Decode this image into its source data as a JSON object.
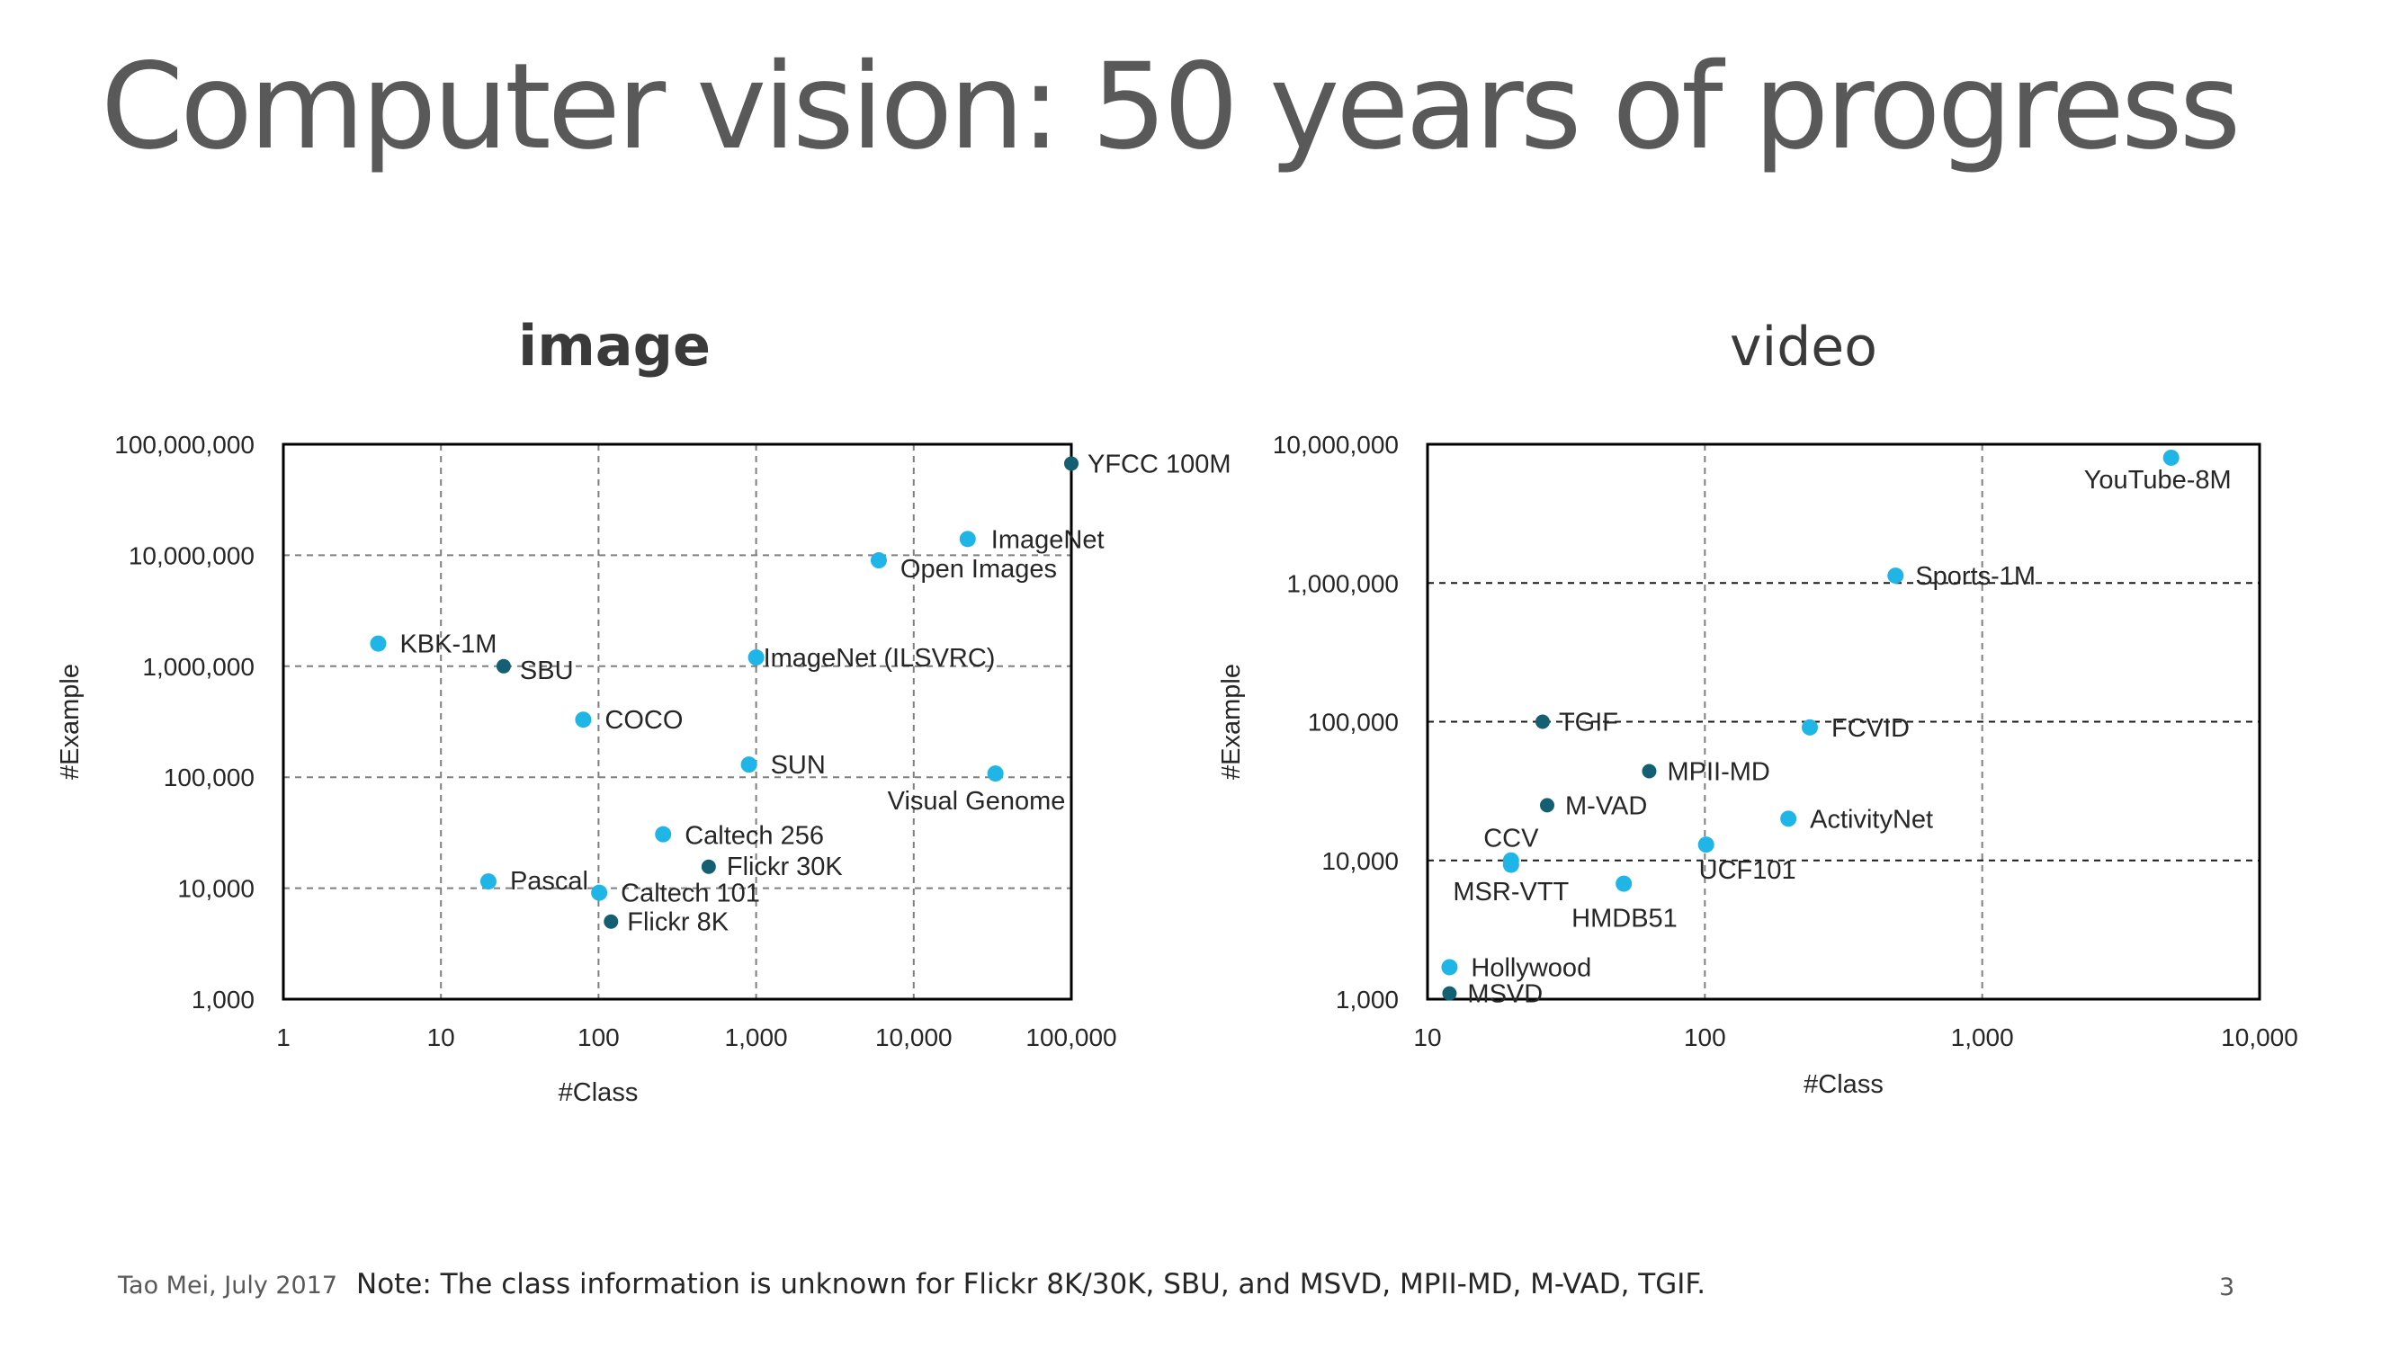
{
  "slide": {
    "title": "Computer vision: 50 years of progress",
    "author_date": "Tao Mei, July 2017",
    "note": "Note: The class information is unknown for Flickr 8K/30K, SBU, and MSVD, MPII-MD, M-VAD, TGIF.",
    "page_number": "3"
  },
  "colors": {
    "point_light": "#1fb5e6",
    "point_dark": "#155f73",
    "grid": "#7f7f7f",
    "text": "#262626"
  },
  "chart_data": [
    {
      "type": "scatter",
      "title": "image",
      "xlabel": "#Class",
      "ylabel": "#Example",
      "xscale": "log",
      "yscale": "log",
      "xlim": [
        1,
        100000
      ],
      "ylim": [
        1000,
        100000000
      ],
      "x_ticks": [
        1,
        10,
        100,
        1000,
        10000,
        100000
      ],
      "x_tick_labels": [
        "1",
        "10",
        "100",
        "1,000",
        "10,000",
        "100,000"
      ],
      "y_ticks": [
        1000,
        10000,
        100000,
        1000000,
        10000000,
        100000000
      ],
      "y_tick_labels": [
        "1,000",
        "10,000",
        "100,000",
        "1,000,000",
        "10,000,000",
        "100,000,000"
      ],
      "grid": true,
      "points": [
        {
          "label": "YFCC 100M",
          "x": 100000,
          "y": 67000000,
          "shade": "dark"
        },
        {
          "label": "ImageNet",
          "x": 22000,
          "y": 14000000,
          "shade": "light"
        },
        {
          "label": "Open Images",
          "x": 6000,
          "y": 9000000,
          "shade": "light"
        },
        {
          "label": "KBK-1M",
          "x": 4,
          "y": 1600000,
          "shade": "light"
        },
        {
          "label": "SBU",
          "x": 25,
          "y": 1000000,
          "shade": "dark"
        },
        {
          "label": "ImageNet (ILSVRC)",
          "x": 1000,
          "y": 1200000,
          "shade": "light"
        },
        {
          "label": "COCO",
          "x": 80,
          "y": 330000,
          "shade": "light"
        },
        {
          "label": "SUN",
          "x": 900,
          "y": 130000,
          "shade": "light"
        },
        {
          "label": "Visual Genome",
          "x": 33000,
          "y": 108000,
          "shade": "light"
        },
        {
          "label": "Caltech 256",
          "x": 257,
          "y": 30600,
          "shade": "light"
        },
        {
          "label": "Flickr 30K",
          "x": 500,
          "y": 15600,
          "shade": "dark"
        },
        {
          "label": "Pascal",
          "x": 20,
          "y": 11500,
          "shade": "light"
        },
        {
          "label": "Caltech 101",
          "x": 101,
          "y": 9100,
          "shade": "light"
        },
        {
          "label": "Flickr 8K",
          "x": 120,
          "y": 5000,
          "shade": "dark"
        }
      ]
    },
    {
      "type": "scatter",
      "title": "video",
      "xlabel": "#Class",
      "ylabel": "#Example",
      "xscale": "log",
      "yscale": "log",
      "xlim": [
        10,
        10000
      ],
      "ylim": [
        1000,
        10000000
      ],
      "x_ticks": [
        10,
        100,
        1000,
        10000
      ],
      "x_tick_labels": [
        "10",
        "100",
        "1,000",
        "10,000"
      ],
      "y_ticks": [
        1000,
        10000,
        100000,
        1000000,
        10000000
      ],
      "y_tick_labels": [
        "1,000",
        "10,000",
        "100,000",
        "1,000,000",
        "10,000,000"
      ],
      "grid": true,
      "points": [
        {
          "label": "YouTube-8M",
          "x": 4800,
          "y": 8000000,
          "shade": "light"
        },
        {
          "label": "Sports-1M",
          "x": 487,
          "y": 1130000,
          "shade": "light"
        },
        {
          "label": "TGIF",
          "x": 26,
          "y": 100000,
          "shade": "dark"
        },
        {
          "label": "FCVID",
          "x": 239,
          "y": 91000,
          "shade": "light"
        },
        {
          "label": "MPII-MD",
          "x": 63,
          "y": 44000,
          "shade": "dark"
        },
        {
          "label": "M-VAD",
          "x": 27,
          "y": 25000,
          "shade": "dark"
        },
        {
          "label": "ActivityNet",
          "x": 200,
          "y": 20000,
          "shade": "light"
        },
        {
          "label": "CCV",
          "x": 20,
          "y": 9300,
          "shade": "light"
        },
        {
          "label": "MSR-VTT",
          "x": 20,
          "y": 10000,
          "shade": "light"
        },
        {
          "label": "UCF101",
          "x": 101,
          "y": 13000,
          "shade": "light"
        },
        {
          "label": "HMDB51",
          "x": 51,
          "y": 6800,
          "shade": "light"
        },
        {
          "label": "Hollywood",
          "x": 12,
          "y": 1700,
          "shade": "light"
        },
        {
          "label": "MSVD",
          "x": 12,
          "y": 1100,
          "shade": "dark"
        }
      ]
    }
  ]
}
